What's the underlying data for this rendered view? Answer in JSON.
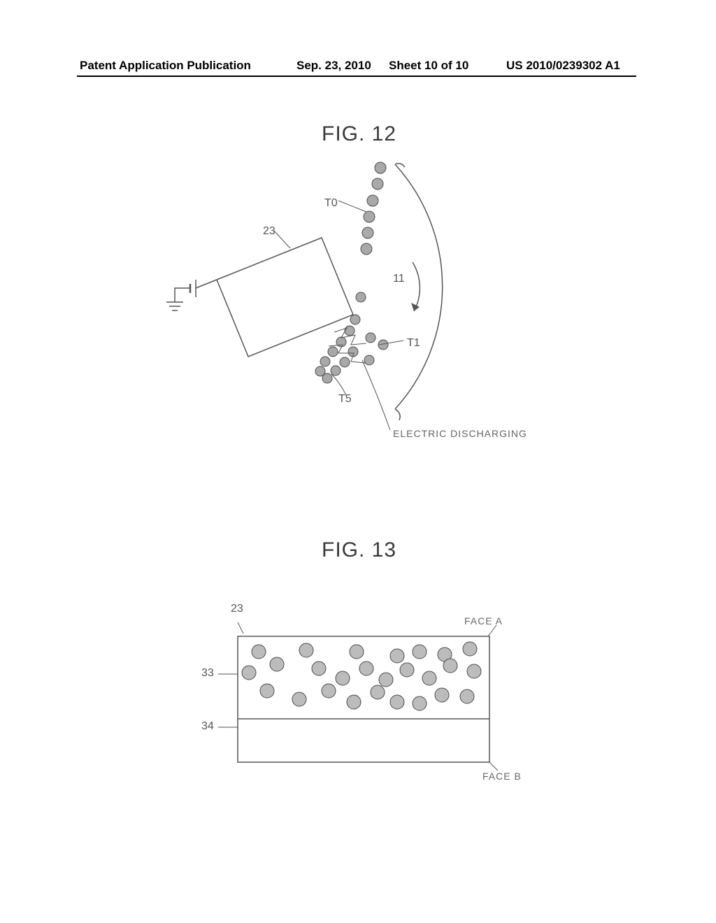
{
  "header": {
    "publication_type": "Patent Application Publication",
    "date": "Sep. 23, 2010",
    "sheet": "Sheet 10 of 10",
    "pub_number": "US 2010/0239302 A1"
  },
  "fig12": {
    "title": "FIG. 12",
    "labels": {
      "t0": "T0",
      "t1": "T1",
      "t5": "T5",
      "ref23": "23",
      "ref11": "11",
      "discharge": "ELECTRIC DISCHARGING"
    },
    "style": {
      "stroke": "#555555",
      "stroke_width": 1.5,
      "dot_fill": "#a9a9a9",
      "dot_stroke": "#4b4b4b",
      "dot_r": 8,
      "arrow_fill": "#555555"
    }
  },
  "fig13": {
    "title": "FIG. 13",
    "labels": {
      "ref23": "23",
      "ref33": "33",
      "ref34": "34",
      "faceA": "FACE A",
      "faceB": "FACE B"
    },
    "style": {
      "stroke": "#555555",
      "stroke_width": 1.5,
      "dot_fill": "#bcbcbc",
      "dot_stroke": "#4b4b4b",
      "dot_r": 10
    }
  }
}
